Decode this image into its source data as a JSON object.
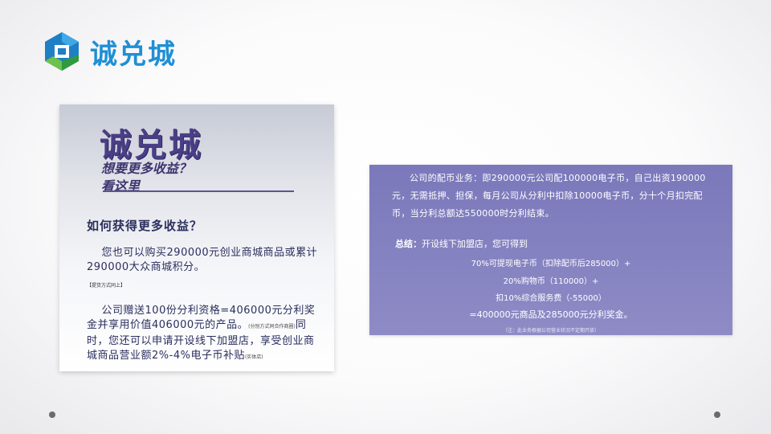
{
  "logo": {
    "text": "诚兑城"
  },
  "left_panel": {
    "brand": "诚兑城",
    "tagline_1": "想要更多收益？",
    "tagline_2": "看这里",
    "heading": "如何获得更多收益？",
    "p1_text": "您也可以购买290000元创业商城商品或累计290000大众商城积分。",
    "p1_note": "【提货方式同上】",
    "p2_text": "公司赠送100份分利资格=406000元分利奖金并享用价值406000元的产品。",
    "p2_note": "(分别方式同合作商圈)",
    "p2_text_b": "同时，您还可以申请开设线下加盟店，享受创业商城商品营业额2%-4%电子币补贴",
    "p2_note_b": "(实体店)"
  },
  "right_panel": {
    "para": "公司的配币业务：即290000元公司配100000电子币，自己出资190000元，无需抵押、担保，每月公司从分利中扣除10000电子币，分十个月扣完配币，当分利总额达550000时分利结束。",
    "summary_label": "总结：",
    "summary_text": "开设线下加盟店，您可得到",
    "line_1": "70%可提现电子币（扣除配币后285000）+",
    "line_2": "20%购物币（110000）+",
    "line_3": "扣10%综合服务费（-55000）",
    "line_4": "=400000元商品及285000元分利奖金。",
    "note": "（注：此业务根据公司营业状况不定期开放）"
  }
}
